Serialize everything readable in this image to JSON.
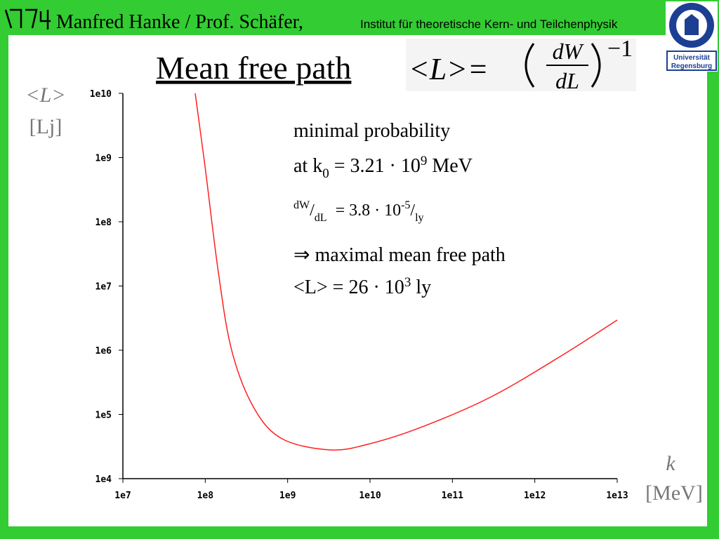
{
  "header": {
    "author": "Manfred Hanke / Prof. Schäfer,",
    "institute": "Institut für theoretische Kern- und Teilchenphysik",
    "university": [
      "Universität",
      "Regensburg"
    ]
  },
  "title": "Mean free path",
  "formula": {
    "lhs": "<L>=",
    "numerator": "dW",
    "denominator": "dL",
    "exponent": "−1"
  },
  "chart_data": {
    "type": "line",
    "x": [
      75500000.0,
      100000000.0,
      145000000.0,
      210000000.0,
      385000000.0,
      850000000.0,
      3300000000.0,
      10000000000.0,
      43000000000.0,
      300000000000.0,
      2200000000000.0,
      10000000000000.0
    ],
    "series": [
      {
        "color": "#ff2020",
        "values": [
          10000000000.0,
          680000000.0,
          15500000.0,
          980000.0,
          130000.0,
          42000.0,
          28000.0,
          35000.0,
          64000.0,
          190000.0,
          850000.0,
          2950000.0
        ]
      }
    ],
    "xscale": "log",
    "yscale": "log",
    "xlim": [
      10000000.0,
      10000000000000.0
    ],
    "ylim": [
      10000.0,
      10000000000.0
    ],
    "xticks": [
      {
        "value": 10000000.0,
        "label": "1e7"
      },
      {
        "value": 100000000.0,
        "label": "1e8"
      },
      {
        "value": 1000000000.0,
        "label": "1e9"
      },
      {
        "value": 10000000000.0,
        "label": "1e10"
      },
      {
        "value": 100000000000.0,
        "label": "1e11"
      },
      {
        "value": 1000000000000.0,
        "label": "1e12"
      },
      {
        "value": 10000000000000.0,
        "label": "1e13"
      }
    ],
    "yticks": [
      {
        "value": 10000.0,
        "label": "1e4"
      },
      {
        "value": 100000.0,
        "label": "1e5"
      },
      {
        "value": 1000000.0,
        "label": "1e6"
      },
      {
        "value": 10000000.0,
        "label": "1e7"
      },
      {
        "value": 100000000.0,
        "label": "1e8"
      },
      {
        "value": 1000000000.0,
        "label": "1e9"
      },
      {
        "value": 10000000000.0,
        "label": "1e10"
      }
    ],
    "ylabel": [
      "<L>",
      "[Lj]"
    ],
    "xlabel": [
      "k",
      "[MeV]"
    ]
  },
  "annotations": [
    [
      {
        "text": "minimal probability"
      }
    ],
    [
      {
        "text": "at k"
      },
      {
        "text": "0",
        "pos": "sub"
      },
      {
        "text": " = 3.21 · 10"
      },
      {
        "text": "9",
        "pos": "sup"
      },
      {
        "text": " MeV"
      }
    ],
    [
      {
        "text": "dW",
        "pos": "sup"
      },
      {
        "text": "/"
      },
      {
        "text": "dL",
        "pos": "sub"
      },
      {
        "text": "  = 3.8 · 10"
      },
      {
        "text": "-5",
        "pos": "sup"
      },
      {
        "text": "/"
      },
      {
        "text": "ly",
        "pos": "sub"
      }
    ],
    [
      {
        "text": "⇒ maximal mean free path"
      }
    ],
    [
      {
        "text": "<L> = 26 · 10"
      },
      {
        "text": "3",
        "pos": "sup"
      },
      {
        "text": " ly"
      }
    ]
  ]
}
